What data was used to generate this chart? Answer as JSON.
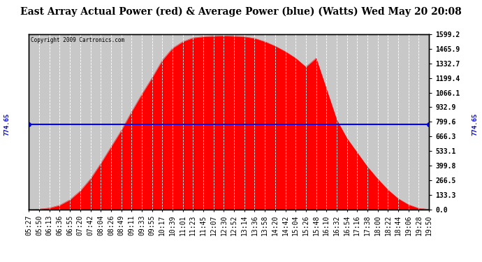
{
  "title": "East Array Actual Power (red) & Average Power (blue) (Watts) Wed May 20 20:08",
  "copyright": "Copyright 2009 Cartronics.com",
  "avg_power": 774.65,
  "max_power": 1599.2,
  "y_ticks": [
    0.0,
    133.3,
    266.5,
    399.8,
    533.1,
    666.3,
    799.6,
    932.9,
    1066.1,
    1199.4,
    1332.7,
    1465.9,
    1599.2
  ],
  "x_labels": [
    "05:27",
    "05:50",
    "06:13",
    "06:36",
    "06:55",
    "07:20",
    "07:42",
    "08:04",
    "08:26",
    "08:49",
    "09:11",
    "09:33",
    "09:55",
    "10:17",
    "10:39",
    "11:01",
    "11:23",
    "11:45",
    "12:07",
    "12:30",
    "12:52",
    "13:14",
    "13:36",
    "13:58",
    "14:20",
    "14:42",
    "15:04",
    "15:26",
    "15:48",
    "16:10",
    "16:32",
    "16:54",
    "17:16",
    "17:38",
    "18:00",
    "18:22",
    "18:44",
    "19:06",
    "19:28",
    "19:50"
  ],
  "power_values": [
    2,
    5,
    15,
    40,
    90,
    170,
    280,
    420,
    570,
    720,
    890,
    1050,
    1200,
    1360,
    1470,
    1530,
    1565,
    1575,
    1580,
    1582,
    1580,
    1575,
    1560,
    1530,
    1490,
    1440,
    1380,
    1300,
    1380,
    1100,
    820,
    650,
    520,
    390,
    280,
    180,
    100,
    45,
    12,
    3
  ],
  "fill_color": "#FF0000",
  "line_color": "#0000FF",
  "background_color": "#C8C8C8",
  "plot_bg_color": "#C8C8C8",
  "grid_color": "#FFFFFF",
  "title_fontsize": 10,
  "tick_fontsize": 7,
  "avg_label": "774.65"
}
